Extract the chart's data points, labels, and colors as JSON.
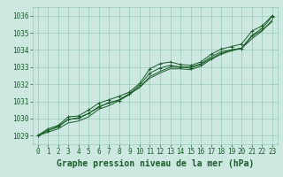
{
  "title": "Graphe pression niveau de la mer (hPa)",
  "bg_color": "#cce8e0",
  "plot_bg_color": "#cce8e0",
  "grid_color": "#99ccbb",
  "line_color": "#1a5c2a",
  "marker_color": "#1a5c2a",
  "xlim": [
    -0.5,
    23.5
  ],
  "ylim": [
    1028.5,
    1036.5
  ],
  "yticks": [
    1029,
    1030,
    1031,
    1032,
    1033,
    1034,
    1035,
    1036
  ],
  "xticks": [
    0,
    1,
    2,
    3,
    4,
    5,
    6,
    7,
    8,
    9,
    10,
    11,
    12,
    13,
    14,
    15,
    16,
    17,
    18,
    19,
    20,
    21,
    22,
    23
  ],
  "series": [
    [
      1029.0,
      1029.4,
      1029.6,
      1030.1,
      1030.15,
      1030.5,
      1030.9,
      1031.1,
      1031.3,
      1031.55,
      1032.05,
      1032.9,
      1033.2,
      1033.3,
      1033.15,
      1033.1,
      1033.3,
      1033.75,
      1034.05,
      1034.2,
      1034.35,
      1035.1,
      1035.4,
      1036.0
    ],
    [
      1029.0,
      1029.3,
      1029.5,
      1029.95,
      1030.0,
      1030.3,
      1030.7,
      1030.9,
      1031.1,
      1031.45,
      1031.8,
      1032.45,
      1032.75,
      1033.0,
      1033.0,
      1033.0,
      1033.2,
      1033.6,
      1033.9,
      1034.0,
      1034.1,
      1034.8,
      1035.15,
      1035.65
    ],
    [
      1029.0,
      1029.2,
      1029.4,
      1029.75,
      1029.85,
      1030.1,
      1030.55,
      1030.75,
      1031.05,
      1031.4,
      1031.85,
      1032.35,
      1032.65,
      1032.9,
      1032.9,
      1032.85,
      1033.05,
      1033.45,
      1033.75,
      1033.95,
      1034.1,
      1034.65,
      1035.1,
      1035.75
    ],
    [
      1029.0,
      1029.3,
      1029.55,
      1029.95,
      1030.05,
      1030.3,
      1030.65,
      1030.95,
      1031.05,
      1031.45,
      1031.95,
      1032.65,
      1032.95,
      1033.1,
      1033.0,
      1032.95,
      1033.15,
      1033.5,
      1033.8,
      1034.0,
      1034.1,
      1034.85,
      1035.25,
      1035.95
    ]
  ],
  "marker_series": [
    0,
    3
  ],
  "title_fontsize": 7,
  "tick_fontsize": 5.5,
  "title_color": "#1a5c2a",
  "tick_color": "#1a5c2a"
}
